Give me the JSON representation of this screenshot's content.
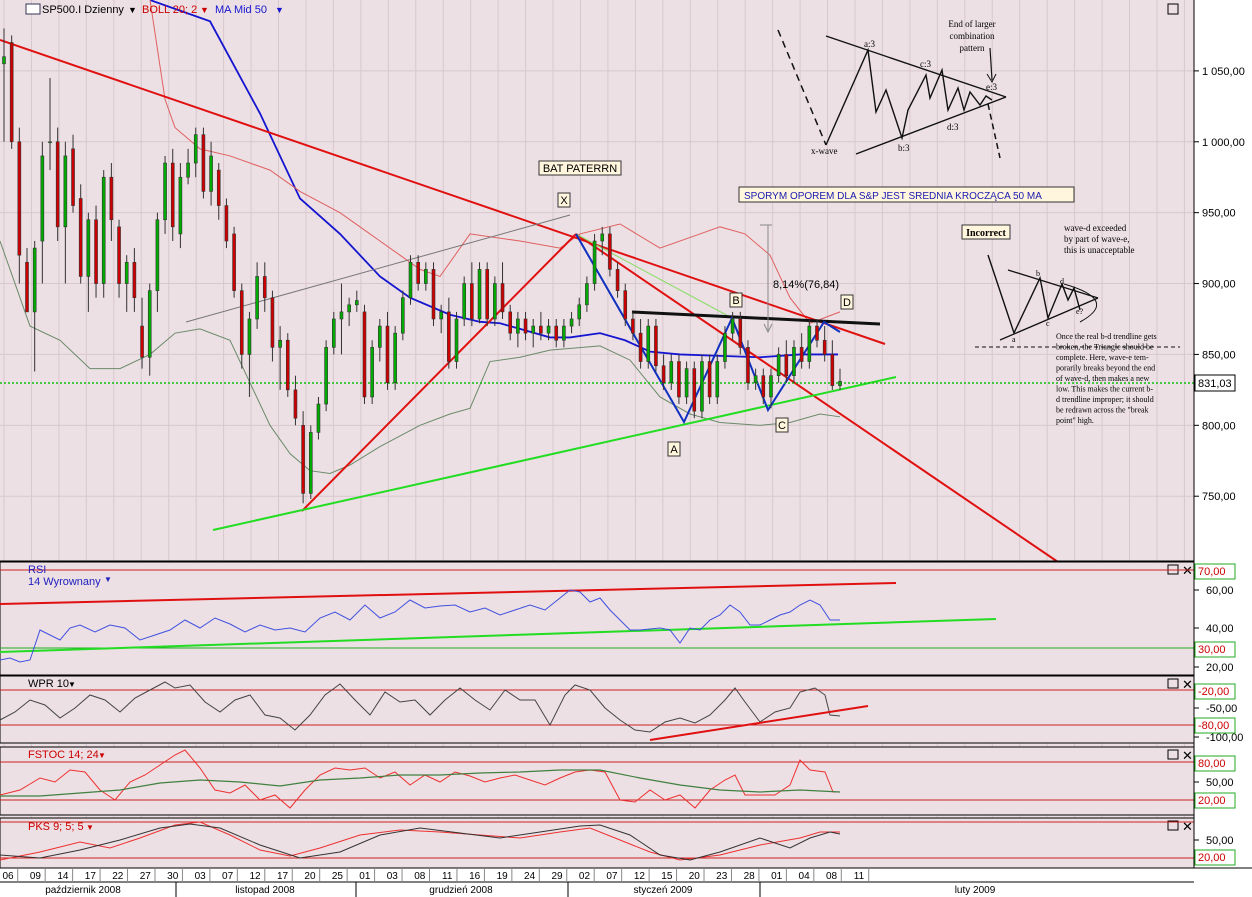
{
  "chart_data": {
    "type": "candlestick",
    "instrument": "SP500.I Dzienny",
    "main_panel": {
      "indicators": [
        "BOLL 20; 2",
        "MA Mid  50"
      ],
      "ylim": [
        705,
        1100
      ],
      "yticks": [
        "750,00",
        "800,00",
        "850,00",
        "900,00",
        "950,00",
        "1 000,00",
        "1 050,00"
      ],
      "last_price": "831,03",
      "annotations": {
        "bat": "BAT PATERRN",
        "sporym": "SPORYM  OPOREM DLA  S&P JEST SREDNIA  KROCZĄCA  50 MA",
        "pct": "8,14%(76,84)",
        "points": [
          "X",
          "A",
          "B",
          "C",
          "D"
        ]
      },
      "inset1": {
        "end_text": [
          "End of larger",
          "combination",
          "pattern"
        ],
        "labels": [
          "a:3",
          "b:3",
          "c:3",
          "d:3",
          "e:3",
          "x-wave"
        ]
      },
      "inset2": {
        "title": "Incorrect",
        "note": [
          "wave-d  exceeded",
          "by part of wave-e,",
          "this is unacceptable"
        ],
        "labels": [
          "a",
          "b",
          "c",
          "d",
          "e?"
        ],
        "body": [
          "Once the real b-d trendline gets",
          "broken, the Triangle should be",
          "complete.  Here, wave-e tem-",
          "porarily breaks beyond the end",
          "of wave-d, then makes a new",
          "low.  This makes the current b-",
          "d trendline improper; it should",
          "be redrawn across the \"break",
          "point\" high."
        ]
      }
    },
    "rsi": {
      "label": "RSI",
      "sublabel": "14 Wyrownany",
      "yticks": [
        "60,00",
        "40,00",
        "20,00"
      ],
      "levels": [
        "70,00",
        "30,00"
      ]
    },
    "wpr": {
      "label": "WPR 10",
      "yticks": [
        "-50,00",
        "-100,00"
      ],
      "levels": [
        "-20,00",
        "-80,00"
      ]
    },
    "fstoc": {
      "label": "FSTOC 14; 24",
      "yticks": [
        "50,00"
      ],
      "levels": [
        "80,00",
        "20,00"
      ]
    },
    "pks": {
      "label": "PKS 9; 5; 5",
      "yticks": [
        "50,00"
      ],
      "levels": [
        "20,00"
      ]
    },
    "x_days": [
      "06",
      "09",
      "14",
      "17",
      "22",
      "27",
      "30",
      "03",
      "07",
      "12",
      "17",
      "20",
      "25",
      "01",
      "03",
      "08",
      "11",
      "16",
      "19",
      "24",
      "29",
      "02",
      "07",
      "12",
      "15",
      "20",
      "23",
      "28",
      "01",
      "04",
      "08",
      "11"
    ],
    "x_months": [
      "październik 2008",
      "listopad 2008",
      "grudzień 2008",
      "styczeń 2009",
      "luty 2009"
    ],
    "candles": [
      {
        "o": 1055,
        "h": 1080,
        "l": 1000,
        "c": 1060
      },
      {
        "o": 1070,
        "h": 1075,
        "l": 995,
        "c": 1000
      },
      {
        "o": 1000,
        "h": 1010,
        "l": 900,
        "c": 920
      },
      {
        "o": 915,
        "h": 925,
        "l": 880,
        "c": 880
      },
      {
        "o": 880,
        "h": 930,
        "l": 838,
        "c": 925
      },
      {
        "o": 930,
        "h": 1000,
        "l": 900,
        "c": 990
      },
      {
        "o": 1000,
        "h": 1045,
        "l": 980,
        "c": 1000
      },
      {
        "o": 1000,
        "h": 1010,
        "l": 930,
        "c": 940
      },
      {
        "o": 940,
        "h": 1000,
        "l": 900,
        "c": 990
      },
      {
        "o": 995,
        "h": 1005,
        "l": 950,
        "c": 955
      },
      {
        "o": 960,
        "h": 970,
        "l": 900,
        "c": 905
      },
      {
        "o": 905,
        "h": 950,
        "l": 880,
        "c": 945
      },
      {
        "o": 945,
        "h": 955,
        "l": 890,
        "c": 900
      },
      {
        "o": 900,
        "h": 980,
        "l": 890,
        "c": 975
      },
      {
        "o": 975,
        "h": 985,
        "l": 930,
        "c": 945
      },
      {
        "o": 940,
        "h": 945,
        "l": 890,
        "c": 900
      },
      {
        "o": 900,
        "h": 920,
        "l": 880,
        "c": 915
      },
      {
        "o": 915,
        "h": 925,
        "l": 880,
        "c": 890
      },
      {
        "o": 870,
        "h": 890,
        "l": 840,
        "c": 848
      },
      {
        "o": 848,
        "h": 900,
        "l": 835,
        "c": 895
      },
      {
        "o": 895,
        "h": 950,
        "l": 880,
        "c": 945
      },
      {
        "o": 945,
        "h": 990,
        "l": 935,
        "c": 985
      },
      {
        "o": 985,
        "h": 995,
        "l": 930,
        "c": 940
      },
      {
        "o": 935,
        "h": 985,
        "l": 925,
        "c": 975
      },
      {
        "o": 975,
        "h": 995,
        "l": 970,
        "c": 985
      },
      {
        "o": 985,
        "h": 1010,
        "l": 975,
        "c": 1005
      },
      {
        "o": 1005,
        "h": 1010,
        "l": 960,
        "c": 965
      },
      {
        "o": 965,
        "h": 1000,
        "l": 955,
        "c": 990
      },
      {
        "o": 980,
        "h": 985,
        "l": 945,
        "c": 955
      },
      {
        "o": 955,
        "h": 960,
        "l": 925,
        "c": 930
      },
      {
        "o": 935,
        "h": 940,
        "l": 890,
        "c": 895
      },
      {
        "o": 895,
        "h": 900,
        "l": 840,
        "c": 850
      },
      {
        "o": 850,
        "h": 880,
        "l": 820,
        "c": 875
      },
      {
        "o": 875,
        "h": 915,
        "l": 868,
        "c": 905
      },
      {
        "o": 905,
        "h": 915,
        "l": 880,
        "c": 890
      },
      {
        "o": 890,
        "h": 895,
        "l": 845,
        "c": 855
      },
      {
        "o": 855,
        "h": 870,
        "l": 825,
        "c": 860
      },
      {
        "o": 860,
        "h": 865,
        "l": 820,
        "c": 825
      },
      {
        "o": 825,
        "h": 835,
        "l": 800,
        "c": 805
      },
      {
        "o": 800,
        "h": 810,
        "l": 745,
        "c": 752
      },
      {
        "o": 752,
        "h": 800,
        "l": 748,
        "c": 795
      },
      {
        "o": 795,
        "h": 820,
        "l": 790,
        "c": 815
      },
      {
        "o": 815,
        "h": 860,
        "l": 810,
        "c": 855
      },
      {
        "o": 855,
        "h": 880,
        "l": 850,
        "c": 875
      },
      {
        "o": 875,
        "h": 900,
        "l": 850,
        "c": 880
      },
      {
        "o": 880,
        "h": 890,
        "l": 870,
        "c": 885
      },
      {
        "o": 885,
        "h": 895,
        "l": 880,
        "c": 888
      },
      {
        "o": 880,
        "h": 885,
        "l": 815,
        "c": 820
      },
      {
        "o": 820,
        "h": 860,
        "l": 815,
        "c": 855
      },
      {
        "o": 855,
        "h": 875,
        "l": 845,
        "c": 870
      },
      {
        "o": 870,
        "h": 880,
        "l": 825,
        "c": 830
      },
      {
        "o": 830,
        "h": 870,
        "l": 825,
        "c": 865
      },
      {
        "o": 865,
        "h": 895,
        "l": 860,
        "c": 890
      },
      {
        "o": 890,
        "h": 920,
        "l": 885,
        "c": 915
      },
      {
        "o": 915,
        "h": 920,
        "l": 895,
        "c": 900
      },
      {
        "o": 900,
        "h": 915,
        "l": 895,
        "c": 910
      },
      {
        "o": 910,
        "h": 915,
        "l": 870,
        "c": 875
      },
      {
        "o": 875,
        "h": 885,
        "l": 865,
        "c": 880
      },
      {
        "o": 880,
        "h": 890,
        "l": 840,
        "c": 845
      },
      {
        "o": 845,
        "h": 880,
        "l": 840,
        "c": 875
      },
      {
        "o": 875,
        "h": 905,
        "l": 870,
        "c": 900
      },
      {
        "o": 900,
        "h": 915,
        "l": 870,
        "c": 875
      },
      {
        "o": 875,
        "h": 915,
        "l": 872,
        "c": 910
      },
      {
        "o": 910,
        "h": 915,
        "l": 870,
        "c": 875
      },
      {
        "o": 875,
        "h": 905,
        "l": 870,
        "c": 900
      },
      {
        "o": 900,
        "h": 915,
        "l": 875,
        "c": 880
      },
      {
        "o": 880,
        "h": 885,
        "l": 860,
        "c": 865
      },
      {
        "o": 865,
        "h": 880,
        "l": 855,
        "c": 875
      },
      {
        "o": 875,
        "h": 880,
        "l": 860,
        "c": 865
      },
      {
        "o": 865,
        "h": 875,
        "l": 855,
        "c": 870
      },
      {
        "o": 870,
        "h": 880,
        "l": 860,
        "c": 865
      },
      {
        "o": 865,
        "h": 875,
        "l": 860,
        "c": 870
      },
      {
        "o": 870,
        "h": 875,
        "l": 855,
        "c": 860
      },
      {
        "o": 860,
        "h": 875,
        "l": 855,
        "c": 870
      },
      {
        "o": 870,
        "h": 880,
        "l": 865,
        "c": 875
      },
      {
        "o": 875,
        "h": 890,
        "l": 870,
        "c": 885
      },
      {
        "o": 885,
        "h": 905,
        "l": 880,
        "c": 900
      },
      {
        "o": 900,
        "h": 935,
        "l": 895,
        "c": 930
      },
      {
        "o": 930,
        "h": 940,
        "l": 920,
        "c": 935
      },
      {
        "o": 935,
        "h": 940,
        "l": 905,
        "c": 910
      },
      {
        "o": 910,
        "h": 915,
        "l": 890,
        "c": 895
      },
      {
        "o": 895,
        "h": 900,
        "l": 870,
        "c": 875
      },
      {
        "o": 875,
        "h": 880,
        "l": 860,
        "c": 865
      },
      {
        "o": 865,
        "h": 875,
        "l": 840,
        "c": 845
      },
      {
        "o": 845,
        "h": 875,
        "l": 840,
        "c": 870
      },
      {
        "o": 870,
        "h": 875,
        "l": 838,
        "c": 842
      },
      {
        "o": 842,
        "h": 850,
        "l": 825,
        "c": 830
      },
      {
        "o": 830,
        "h": 850,
        "l": 825,
        "c": 845
      },
      {
        "o": 845,
        "h": 850,
        "l": 815,
        "c": 820
      },
      {
        "o": 820,
        "h": 845,
        "l": 815,
        "c": 840
      },
      {
        "o": 840,
        "h": 845,
        "l": 805,
        "c": 810
      },
      {
        "o": 810,
        "h": 850,
        "l": 805,
        "c": 845
      },
      {
        "o": 845,
        "h": 850,
        "l": 815,
        "c": 820
      },
      {
        "o": 820,
        "h": 850,
        "l": 815,
        "c": 845
      },
      {
        "o": 845,
        "h": 870,
        "l": 840,
        "c": 865
      },
      {
        "o": 865,
        "h": 880,
        "l": 860,
        "c": 875
      },
      {
        "o": 875,
        "h": 880,
        "l": 850,
        "c": 855
      },
      {
        "o": 855,
        "h": 860,
        "l": 825,
        "c": 830
      },
      {
        "o": 830,
        "h": 840,
        "l": 825,
        "c": 835
      },
      {
        "o": 835,
        "h": 840,
        "l": 815,
        "c": 820
      },
      {
        "o": 820,
        "h": 840,
        "l": 812,
        "c": 835
      },
      {
        "o": 835,
        "h": 855,
        "l": 830,
        "c": 850
      },
      {
        "o": 850,
        "h": 860,
        "l": 830,
        "c": 835
      },
      {
        "o": 835,
        "h": 860,
        "l": 830,
        "c": 855
      },
      {
        "o": 855,
        "h": 865,
        "l": 840,
        "c": 845
      },
      {
        "o": 845,
        "h": 875,
        "l": 840,
        "c": 870
      },
      {
        "o": 870,
        "h": 875,
        "l": 855,
        "c": 860
      },
      {
        "o": 860,
        "h": 870,
        "l": 845,
        "c": 850
      },
      {
        "o": 850,
        "h": 860,
        "l": 825,
        "c": 828
      },
      {
        "o": 828,
        "h": 840,
        "l": 825,
        "c": 831
      }
    ]
  }
}
